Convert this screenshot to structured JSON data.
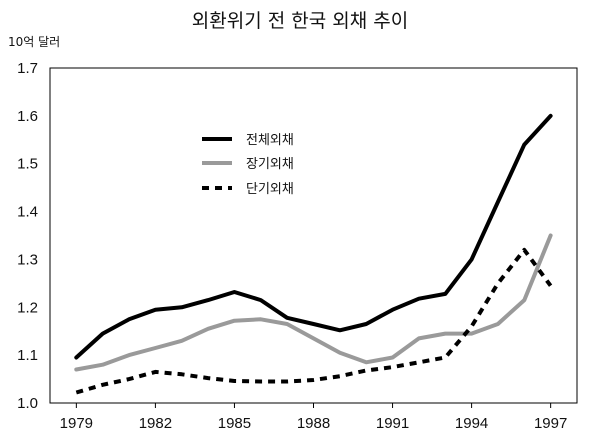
{
  "chart_data": {
    "type": "line",
    "title": "외환위기 전 한국 외채 추이",
    "ylabel": "10억 달러",
    "xlabel": "",
    "ylim": [
      1.0,
      1.7
    ],
    "yticks": [
      "1.0",
      "1.1",
      "1.2",
      "1.3",
      "1.4",
      "1.5",
      "1.6",
      "1.7"
    ],
    "xlim": [
      1978,
      1998
    ],
    "xticks": [
      "1979",
      "1982",
      "1985",
      "1988",
      "1991",
      "1994",
      "1997"
    ],
    "grid": false,
    "legend_position": "upper-left",
    "x": [
      1979,
      1980,
      1981,
      1982,
      1983,
      1984,
      1985,
      1986,
      1987,
      1988,
      1989,
      1990,
      1991,
      1992,
      1993,
      1994,
      1995,
      1996,
      1997
    ],
    "series": [
      {
        "name": "전체외채",
        "color": "#000000",
        "style": "solid",
        "values": [
          1.095,
          1.145,
          1.175,
          1.195,
          1.2,
          1.215,
          1.232,
          1.215,
          1.178,
          1.165,
          1.152,
          1.165,
          1.195,
          1.218,
          1.228,
          1.3,
          1.42,
          1.54,
          1.6
        ]
      },
      {
        "name": "장기외채",
        "color": "#9a9a9a",
        "style": "solid",
        "values": [
          1.07,
          1.08,
          1.1,
          1.115,
          1.13,
          1.155,
          1.172,
          1.175,
          1.165,
          1.135,
          1.105,
          1.085,
          1.095,
          1.135,
          1.145,
          1.145,
          1.165,
          1.215,
          1.35
        ]
      },
      {
        "name": "단기외채",
        "color": "#000000",
        "style": "dashed",
        "values": [
          1.022,
          1.038,
          1.05,
          1.065,
          1.06,
          1.052,
          1.046,
          1.045,
          1.045,
          1.048,
          1.056,
          1.068,
          1.075,
          1.085,
          1.095,
          1.16,
          1.25,
          1.32,
          1.245
        ]
      }
    ]
  }
}
